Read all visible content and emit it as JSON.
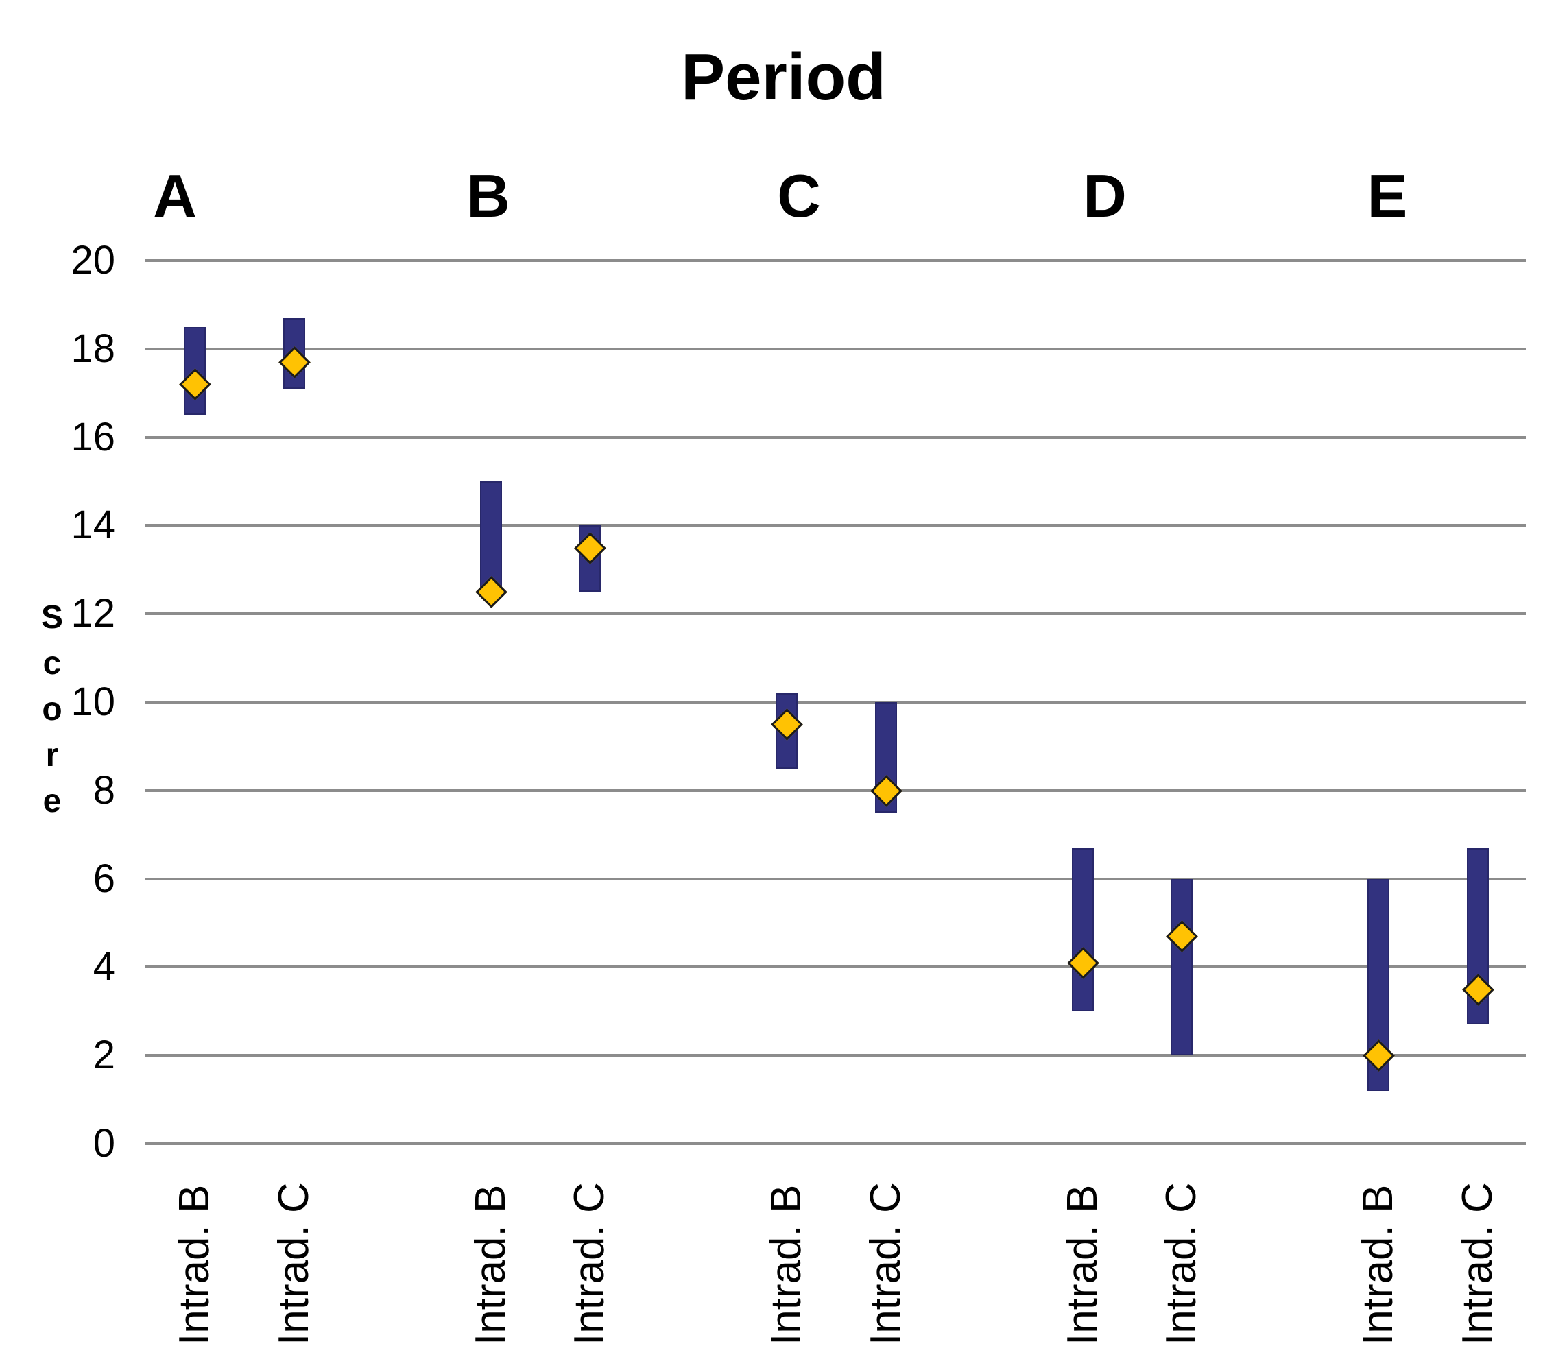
{
  "chart_data": {
    "type": "bar",
    "subtype": "floating-range-bars-with-diamond-markers",
    "title": "Period",
    "ylabel": "Score",
    "xlabel": "",
    "ylim": [
      0,
      20
    ],
    "ytick_step": 2,
    "grid": "horizontal gridlines every 2 units",
    "legend": "none",
    "categories": [
      "A",
      "B",
      "C",
      "D",
      "E"
    ],
    "x_sublabels_per_group": [
      "Intrad. B",
      "Intrad. C"
    ],
    "series": [
      {
        "name": "Intrad. B",
        "ranges": [
          [
            16.5,
            18.5
          ],
          [
            12.5,
            15.0
          ],
          [
            8.5,
            10.2
          ],
          [
            3.0,
            6.7
          ],
          [
            1.2,
            6.0
          ]
        ],
        "markers": [
          17.2,
          12.5,
          9.5,
          4.1,
          2.0
        ]
      },
      {
        "name": "Intrad. C",
        "ranges": [
          [
            17.1,
            18.7
          ],
          [
            12.5,
            14.0
          ],
          [
            7.5,
            10.0
          ],
          [
            2.0,
            6.0
          ],
          [
            2.7,
            6.7
          ]
        ],
        "markers": [
          17.7,
          13.5,
          8.0,
          4.7,
          3.5
        ]
      }
    ],
    "colors": {
      "bar_fill": "#32327F",
      "bar_border": "#28286A",
      "marker_fill": "#FFC203",
      "marker_border": "#1B1B1B",
      "gridline": "#8C8C8C",
      "text": "#000000",
      "background": "#FFFFFF"
    }
  }
}
